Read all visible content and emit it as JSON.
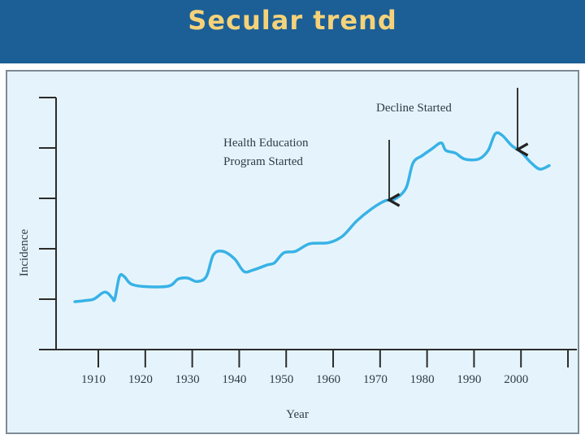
{
  "slide": {
    "title": "Secular trend"
  },
  "chart_data": {
    "type": "line",
    "xlabel": "Year",
    "ylabel": "Incidence",
    "x_ticks": [
      "1910",
      "1920",
      "1930",
      "1940",
      "1950",
      "1960",
      "1970",
      "1980",
      "1990",
      "2000"
    ],
    "xlim": [
      1901,
      2010
    ],
    "ylim": [
      0,
      5
    ],
    "grid": false,
    "annotations": [
      {
        "text_lines": [
          "Health Education",
          "Program Started"
        ],
        "x": 1971
      },
      {
        "text_lines": [
          "Decline Started"
        ],
        "x": 1998.5
      }
    ],
    "series": [
      {
        "color": "#38b2e6",
        "points": [
          [
            1905,
            0.95
          ],
          [
            1907,
            0.97
          ],
          [
            1909,
            1.0
          ],
          [
            1911,
            1.13
          ],
          [
            1912,
            1.12
          ],
          [
            1913,
            1.02
          ],
          [
            1913.5,
            1.0
          ],
          [
            1914.5,
            1.45
          ],
          [
            1915.5,
            1.45
          ],
          [
            1917,
            1.3
          ],
          [
            1920,
            1.25
          ],
          [
            1925,
            1.26
          ],
          [
            1927,
            1.4
          ],
          [
            1929,
            1.42
          ],
          [
            1931,
            1.35
          ],
          [
            1933,
            1.45
          ],
          [
            1934.5,
            1.88
          ],
          [
            1936.5,
            1.95
          ],
          [
            1939,
            1.8
          ],
          [
            1941,
            1.55
          ],
          [
            1943,
            1.58
          ],
          [
            1946,
            1.68
          ],
          [
            1947.5,
            1.72
          ],
          [
            1949.5,
            1.92
          ],
          [
            1952,
            1.95
          ],
          [
            1955,
            2.1
          ],
          [
            1959,
            2.12
          ],
          [
            1962,
            2.25
          ],
          [
            1965,
            2.55
          ],
          [
            1968,
            2.78
          ],
          [
            1971,
            2.95
          ],
          [
            1973,
            2.98
          ],
          [
            1975.5,
            3.2
          ],
          [
            1977,
            3.7
          ],
          [
            1979,
            3.85
          ],
          [
            1981,
            3.98
          ],
          [
            1983,
            4.1
          ],
          [
            1984,
            3.95
          ],
          [
            1986,
            3.9
          ],
          [
            1988,
            3.78
          ],
          [
            1991,
            3.78
          ],
          [
            1993,
            3.95
          ],
          [
            1994.5,
            4.28
          ],
          [
            1996,
            4.25
          ],
          [
            1998,
            4.05
          ],
          [
            2000,
            3.92
          ],
          [
            2002,
            3.72
          ],
          [
            2004,
            3.58
          ],
          [
            2006,
            3.65
          ]
        ]
      }
    ]
  }
}
